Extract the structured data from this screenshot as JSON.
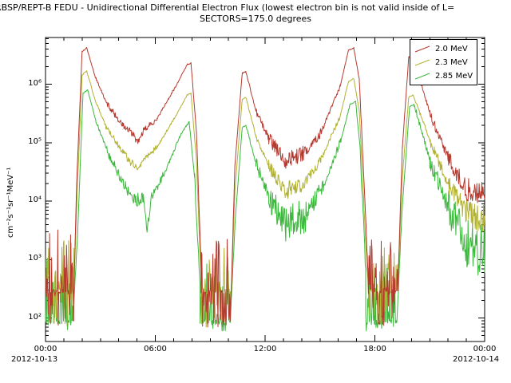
{
  "chart_data": {
    "type": "line",
    "title": "RBSP/REPT-B  FEDU - Unidirectional Differential Electron Flux (lowest electron bin is not valid inside of L=",
    "subtitle": "SECTORS=175.0 degrees",
    "ylabel": "cm⁻²s⁻¹sr⁻¹MeV⁻¹",
    "x_axis": {
      "range": [
        0,
        24
      ],
      "minor_step_hours": 1,
      "ticks": [
        {
          "t": 0,
          "label": "00:00"
        },
        {
          "t": 6,
          "label": "06:00"
        },
        {
          "t": 12,
          "label": "12:00"
        },
        {
          "t": 18,
          "label": "18:00"
        },
        {
          "t": 24,
          "label": "00:00"
        }
      ],
      "date_left": "2012-10-13",
      "date_right": "2012-10-14"
    },
    "y_axis": {
      "scale": "log",
      "range_log": [
        1.6,
        6.8
      ],
      "ticks": [
        {
          "exp": 2,
          "label": "10²"
        },
        {
          "exp": 3,
          "label": "10³"
        },
        {
          "exp": 4,
          "label": "10⁴"
        },
        {
          "exp": 5,
          "label": "10⁵"
        },
        {
          "exp": 6,
          "label": "10⁶"
        }
      ]
    },
    "legend": {
      "position": "top-right"
    },
    "noise_seed": 1337,
    "series": [
      {
        "name": "2.0 MeV",
        "color": "#b6392f",
        "segments": [
          [
            "n",
            0.0,
            1.55,
            70,
            4000,
            290
          ],
          [
            "s",
            1.55,
            1.7,
            290,
            20000.0,
            0
          ],
          [
            "s",
            1.7,
            2.0,
            20000.0,
            3600000.0,
            0.02
          ],
          [
            "s",
            2.0,
            2.25,
            3600000.0,
            4200000.0,
            0.01
          ],
          [
            "s",
            2.25,
            2.7,
            4200000.0,
            1400000.0,
            0.01
          ],
          [
            "s",
            2.7,
            3.3,
            1400000.0,
            500000.0,
            0.02
          ],
          [
            "s",
            3.3,
            4.2,
            500000.0,
            200000.0,
            0.05
          ],
          [
            "s",
            4.2,
            4.8,
            200000.0,
            135000.0,
            0.07
          ],
          [
            "s",
            4.8,
            5.05,
            135000.0,
            100000.0,
            0.06
          ],
          [
            "s",
            5.05,
            5.35,
            100000.0,
            160000.0,
            0.05
          ],
          [
            "s",
            5.35,
            6.1,
            160000.0,
            260000.0,
            0.05
          ],
          [
            "s",
            6.1,
            7.1,
            260000.0,
            900000.0,
            0.02
          ],
          [
            "s",
            7.1,
            7.75,
            900000.0,
            2200000.0,
            0.01
          ],
          [
            "s",
            7.75,
            7.95,
            2200000.0,
            2300000.0,
            0.01
          ],
          [
            "s",
            7.95,
            8.25,
            2300000.0,
            150000.0,
            0.01
          ],
          [
            "s",
            8.25,
            8.5,
            150000.0,
            800,
            0.05
          ],
          [
            "n",
            8.5,
            10.15,
            70,
            2500,
            290
          ],
          [
            "s",
            10.15,
            10.35,
            290,
            40000.0,
            0.03
          ],
          [
            "s",
            10.35,
            10.75,
            40000.0,
            1550000.0,
            0.01
          ],
          [
            "s",
            10.75,
            10.95,
            1550000.0,
            1650000.0,
            0.01
          ],
          [
            "s",
            10.95,
            11.5,
            1650000.0,
            350000.0,
            0.02
          ],
          [
            "s",
            11.5,
            12.2,
            350000.0,
            120000.0,
            0.06
          ],
          [
            "s",
            12.2,
            13.1,
            120000.0,
            50000.0,
            0.12
          ],
          [
            "s",
            13.1,
            14.1,
            50000.0,
            65000.0,
            0.14
          ],
          [
            "s",
            14.1,
            15.1,
            65000.0,
            160000.0,
            0.09
          ],
          [
            "s",
            15.1,
            16.1,
            160000.0,
            900000.0,
            0.04
          ],
          [
            "s",
            16.1,
            16.55,
            900000.0,
            3800000.0,
            0.01
          ],
          [
            "s",
            16.55,
            16.85,
            3800000.0,
            4200000.0,
            0.01
          ],
          [
            "s",
            16.85,
            17.15,
            4200000.0,
            1200000.0,
            0.01
          ],
          [
            "s",
            17.15,
            17.5,
            1200000.0,
            5000.0,
            0.03
          ],
          [
            "s",
            17.5,
            17.65,
            5000.0,
            290,
            0.1
          ],
          [
            "n",
            17.65,
            19.25,
            70,
            2500,
            290
          ],
          [
            "s",
            19.25,
            19.5,
            290,
            80000.0,
            0.03
          ],
          [
            "s",
            19.5,
            19.85,
            80000.0,
            2900000.0,
            0.01
          ],
          [
            "s",
            19.85,
            20.1,
            2900000.0,
            3100000.0,
            0.01
          ],
          [
            "s",
            20.1,
            21.0,
            3100000.0,
            320000.0,
            0.03
          ],
          [
            "s",
            21.0,
            22.0,
            320000.0,
            55000.0,
            0.08
          ],
          [
            "s",
            22.0,
            23.0,
            55000.0,
            16000.0,
            0.15
          ],
          [
            "s",
            23.0,
            24.0,
            16000.0,
            13000.0,
            0.2
          ]
        ]
      },
      {
        "name": "2.3 MeV",
        "color": "#b2b232",
        "segments": [
          [
            "n",
            0.0,
            1.55,
            70,
            2200,
            290
          ],
          [
            "s",
            1.55,
            1.7,
            290,
            8000.0,
            0
          ],
          [
            "s",
            1.7,
            2.0,
            8000.0,
            1450000.0,
            0.02
          ],
          [
            "s",
            2.0,
            2.25,
            1450000.0,
            1700000.0,
            0.01
          ],
          [
            "s",
            2.25,
            2.7,
            1700000.0,
            550000.0,
            0.01
          ],
          [
            "s",
            2.7,
            3.3,
            550000.0,
            190000.0,
            0.02
          ],
          [
            "s",
            3.3,
            4.2,
            190000.0,
            70000.0,
            0.05
          ],
          [
            "s",
            4.2,
            4.8,
            70000.0,
            42000.0,
            0.07
          ],
          [
            "s",
            4.8,
            5.05,
            42000.0,
            35000.0,
            0.06
          ],
          [
            "s",
            5.05,
            5.35,
            35000.0,
            50000.0,
            0.05
          ],
          [
            "s",
            5.35,
            6.1,
            50000.0,
            85000.0,
            0.05
          ],
          [
            "s",
            6.1,
            7.1,
            85000.0,
            280000.0,
            0.02
          ],
          [
            "s",
            7.1,
            7.75,
            280000.0,
            660000.0,
            0.01
          ],
          [
            "s",
            7.75,
            7.95,
            660000.0,
            700000.0,
            0.01
          ],
          [
            "s",
            7.95,
            8.25,
            700000.0,
            50000.0,
            0.01
          ],
          [
            "s",
            8.25,
            8.5,
            50000.0,
            500,
            0.05
          ],
          [
            "n",
            8.5,
            10.15,
            70,
            1600,
            290
          ],
          [
            "s",
            10.15,
            10.35,
            290,
            15000.0,
            0.03
          ],
          [
            "s",
            10.35,
            10.75,
            15000.0,
            550000.0,
            0.01
          ],
          [
            "s",
            10.75,
            10.95,
            550000.0,
            600000.0,
            0.01
          ],
          [
            "s",
            10.95,
            11.5,
            600000.0,
            130000.0,
            0.02
          ],
          [
            "s",
            11.5,
            12.2,
            130000.0,
            40000.0,
            0.06
          ],
          [
            "s",
            12.2,
            13.1,
            40000.0,
            15000.0,
            0.12
          ],
          [
            "s",
            13.1,
            14.1,
            15000.0,
            20000.0,
            0.15
          ],
          [
            "s",
            14.1,
            15.1,
            20000.0,
            55000.0,
            0.09
          ],
          [
            "s",
            15.1,
            16.1,
            55000.0,
            280000.0,
            0.04
          ],
          [
            "s",
            16.1,
            16.55,
            280000.0,
            1100000.0,
            0.01
          ],
          [
            "s",
            16.55,
            16.85,
            1100000.0,
            1250000.0,
            0.01
          ],
          [
            "s",
            16.85,
            17.15,
            1250000.0,
            350000.0,
            0.01
          ],
          [
            "s",
            17.15,
            17.5,
            350000.0,
            2000.0,
            0.03
          ],
          [
            "s",
            17.5,
            17.65,
            2000.0,
            290,
            0.1
          ],
          [
            "n",
            17.65,
            19.25,
            70,
            1600,
            290
          ],
          [
            "s",
            19.25,
            19.5,
            290,
            25000.0,
            0.03
          ],
          [
            "s",
            19.5,
            19.85,
            25000.0,
            600000.0,
            0.01
          ],
          [
            "s",
            19.85,
            20.1,
            600000.0,
            660000.0,
            0.01
          ],
          [
            "s",
            20.1,
            21.0,
            660000.0,
            110000.0,
            0.03
          ],
          [
            "s",
            21.0,
            22.0,
            110000.0,
            20000.0,
            0.09
          ],
          [
            "s",
            22.0,
            23.0,
            20000.0,
            6500.0,
            0.18
          ],
          [
            "s",
            23.0,
            24.0,
            6500.0,
            5000.0,
            0.25
          ]
        ]
      },
      {
        "name": "2.85 MeV",
        "color": "#3cb83c",
        "segments": [
          [
            "n",
            0.0,
            1.5,
            60,
            1200,
            85
          ],
          [
            "s",
            1.5,
            1.75,
            85,
            2500.0,
            0.05
          ],
          [
            "s",
            1.75,
            2.05,
            2500.0,
            700000.0,
            0.02
          ],
          [
            "s",
            2.05,
            2.3,
            700000.0,
            800000.0,
            0.01
          ],
          [
            "s",
            2.3,
            2.75,
            800000.0,
            240000.0,
            0.01
          ],
          [
            "s",
            2.75,
            3.35,
            240000.0,
            75000.0,
            0.03
          ],
          [
            "s",
            3.35,
            4.25,
            75000.0,
            20000.0,
            0.08
          ],
          [
            "s",
            4.25,
            4.9,
            20000.0,
            10500.0,
            0.1
          ],
          [
            "s",
            4.9,
            5.35,
            10500.0,
            11000.0,
            0.12
          ],
          [
            "s",
            5.35,
            5.55,
            11000.0,
            3200.0,
            0.08
          ],
          [
            "s",
            5.55,
            5.8,
            3200.0,
            12000.0,
            0.08
          ],
          [
            "s",
            5.8,
            6.5,
            12000.0,
            30000.0,
            0.07
          ],
          [
            "s",
            6.5,
            7.35,
            30000.0,
            130000.0,
            0.03
          ],
          [
            "s",
            7.35,
            7.85,
            130000.0,
            230000.0,
            0.02
          ],
          [
            "s",
            7.85,
            8.15,
            230000.0,
            25000.0,
            0.02
          ],
          [
            "s",
            8.15,
            8.45,
            25000.0,
            300,
            0.08
          ],
          [
            "n",
            8.45,
            10.1,
            60,
            900,
            85
          ],
          [
            "s",
            10.1,
            10.35,
            85,
            4000.0,
            0.05
          ],
          [
            "s",
            10.35,
            10.75,
            4000.0,
            180000.0,
            0.01
          ],
          [
            "s",
            10.75,
            10.95,
            180000.0,
            200000.0,
            0.01
          ],
          [
            "s",
            10.95,
            11.5,
            200000.0,
            45000.0,
            0.03
          ],
          [
            "s",
            11.5,
            12.2,
            45000.0,
            12000.0,
            0.1
          ],
          [
            "s",
            12.2,
            13.1,
            12000.0,
            4000.0,
            0.25
          ],
          [
            "s",
            13.1,
            14.3,
            4000.0,
            6000.0,
            0.3
          ],
          [
            "s",
            14.3,
            15.3,
            6000.0,
            22000.0,
            0.15
          ],
          [
            "s",
            15.3,
            16.15,
            22000.0,
            110000.0,
            0.07
          ],
          [
            "s",
            16.15,
            16.65,
            110000.0,
            460000.0,
            0.02
          ],
          [
            "s",
            16.65,
            16.95,
            460000.0,
            500000.0,
            0.01
          ],
          [
            "s",
            16.95,
            17.2,
            500000.0,
            80000.0,
            0.02
          ],
          [
            "s",
            17.2,
            17.5,
            80000.0,
            600,
            0.1
          ],
          [
            "n",
            17.5,
            19.2,
            60,
            900,
            85
          ],
          [
            "s",
            19.2,
            19.5,
            85,
            8000.0,
            0.05
          ],
          [
            "s",
            19.5,
            19.9,
            8000.0,
            420000.0,
            0.02
          ],
          [
            "s",
            19.9,
            20.15,
            420000.0,
            450000.0,
            0.01
          ],
          [
            "s",
            20.15,
            21.0,
            450000.0,
            50000.0,
            0.05
          ],
          [
            "s",
            21.0,
            22.0,
            50000.0,
            8000.0,
            0.15
          ],
          [
            "s",
            22.0,
            23.0,
            8000.0,
            2000.0,
            0.35
          ],
          [
            "s",
            23.0,
            24.0,
            2000.0,
            1300.0,
            0.45
          ]
        ]
      }
    ]
  }
}
